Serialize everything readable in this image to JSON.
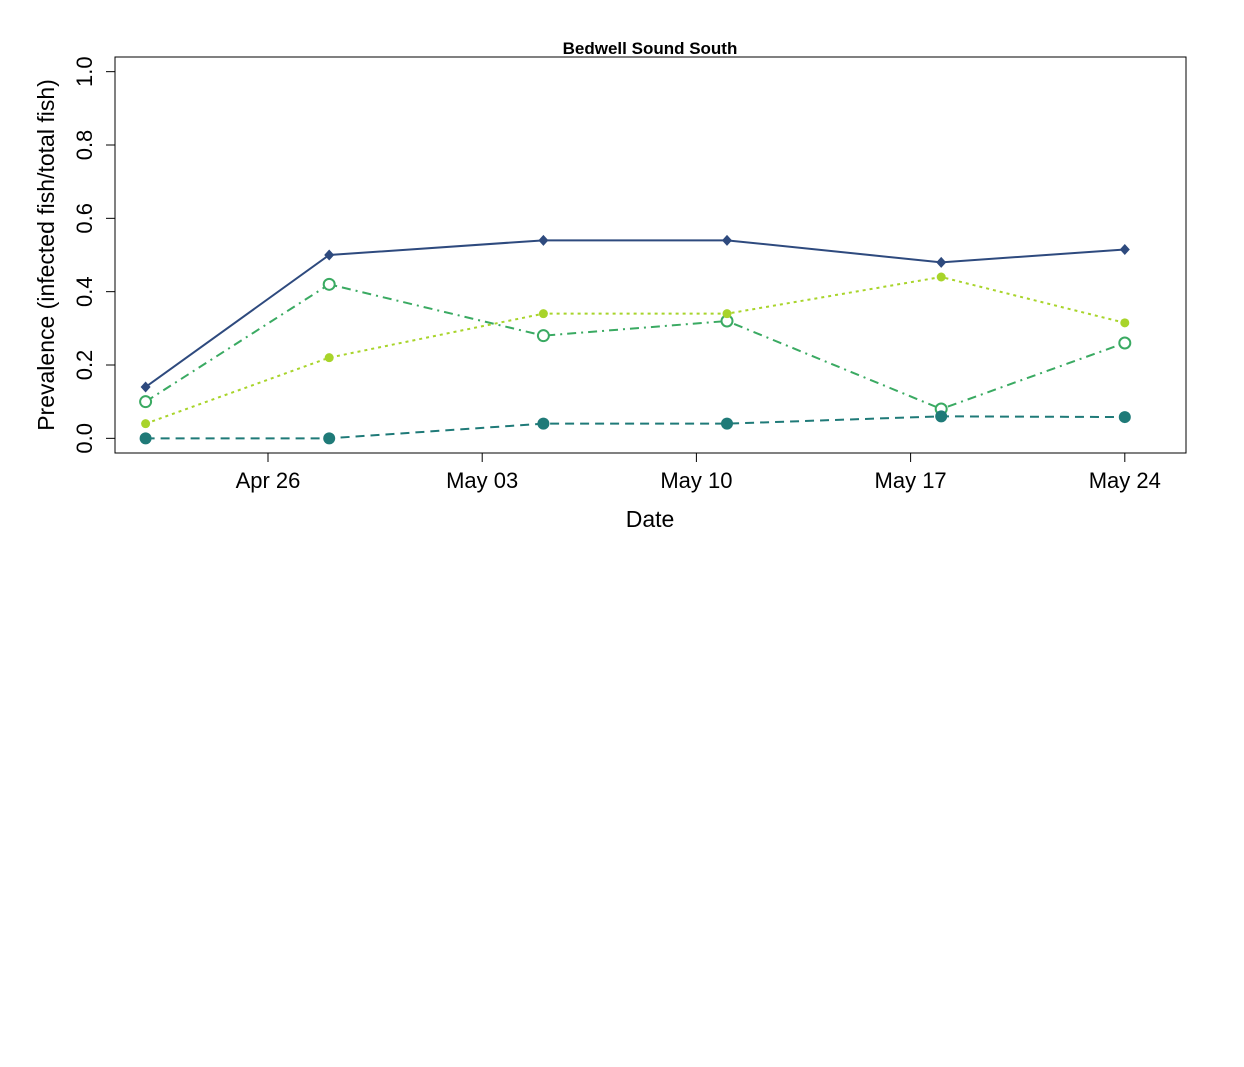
{
  "chart_data": {
    "type": "line",
    "title": "Bedwell Sound South",
    "xlabel": "Date",
    "ylabel": "Prevalence (infected fish/total fish)",
    "xlim": [
      "2020-04-21",
      "2020-05-26"
    ],
    "ylim": [
      -0.04,
      1.04
    ],
    "x_ticks": [
      "Apr 26",
      "May 03",
      "May 10",
      "May 17",
      "May 24"
    ],
    "x_tick_dates": [
      "2020-04-26",
      "2020-05-03",
      "2020-05-10",
      "2020-05-17",
      "2020-05-24"
    ],
    "y_ticks": [
      "0.0",
      "0.2",
      "0.4",
      "0.6",
      "0.8",
      "1.0"
    ],
    "y_tick_values": [
      0.0,
      0.2,
      0.4,
      0.6,
      0.8,
      1.0
    ],
    "x": [
      "2020-04-22",
      "2020-04-28",
      "2020-05-05",
      "2020-05-11",
      "2020-05-18",
      "2020-05-24"
    ],
    "grid": false,
    "legend": "none",
    "series": [
      {
        "values": [
          0.14,
          0.5,
          0.54,
          0.54,
          0.48,
          0.515
        ],
        "color": "#2e4a7e",
        "dash": "solid",
        "marker": "diamond"
      },
      {
        "values": [
          0.1,
          0.42,
          0.28,
          0.32,
          0.08,
          0.26
        ],
        "color": "#3aaa62",
        "dash": "dashdot",
        "marker": "open-circle"
      },
      {
        "values": [
          0.04,
          0.22,
          0.34,
          0.34,
          0.44,
          0.315
        ],
        "color": "#a8d42a",
        "dash": "dotted",
        "marker": "small-dot"
      },
      {
        "values": [
          0.0,
          0.0,
          0.04,
          0.04,
          0.06,
          0.058
        ],
        "color": "#1f7a78",
        "dash": "dashed",
        "marker": "filled-circle"
      }
    ]
  }
}
